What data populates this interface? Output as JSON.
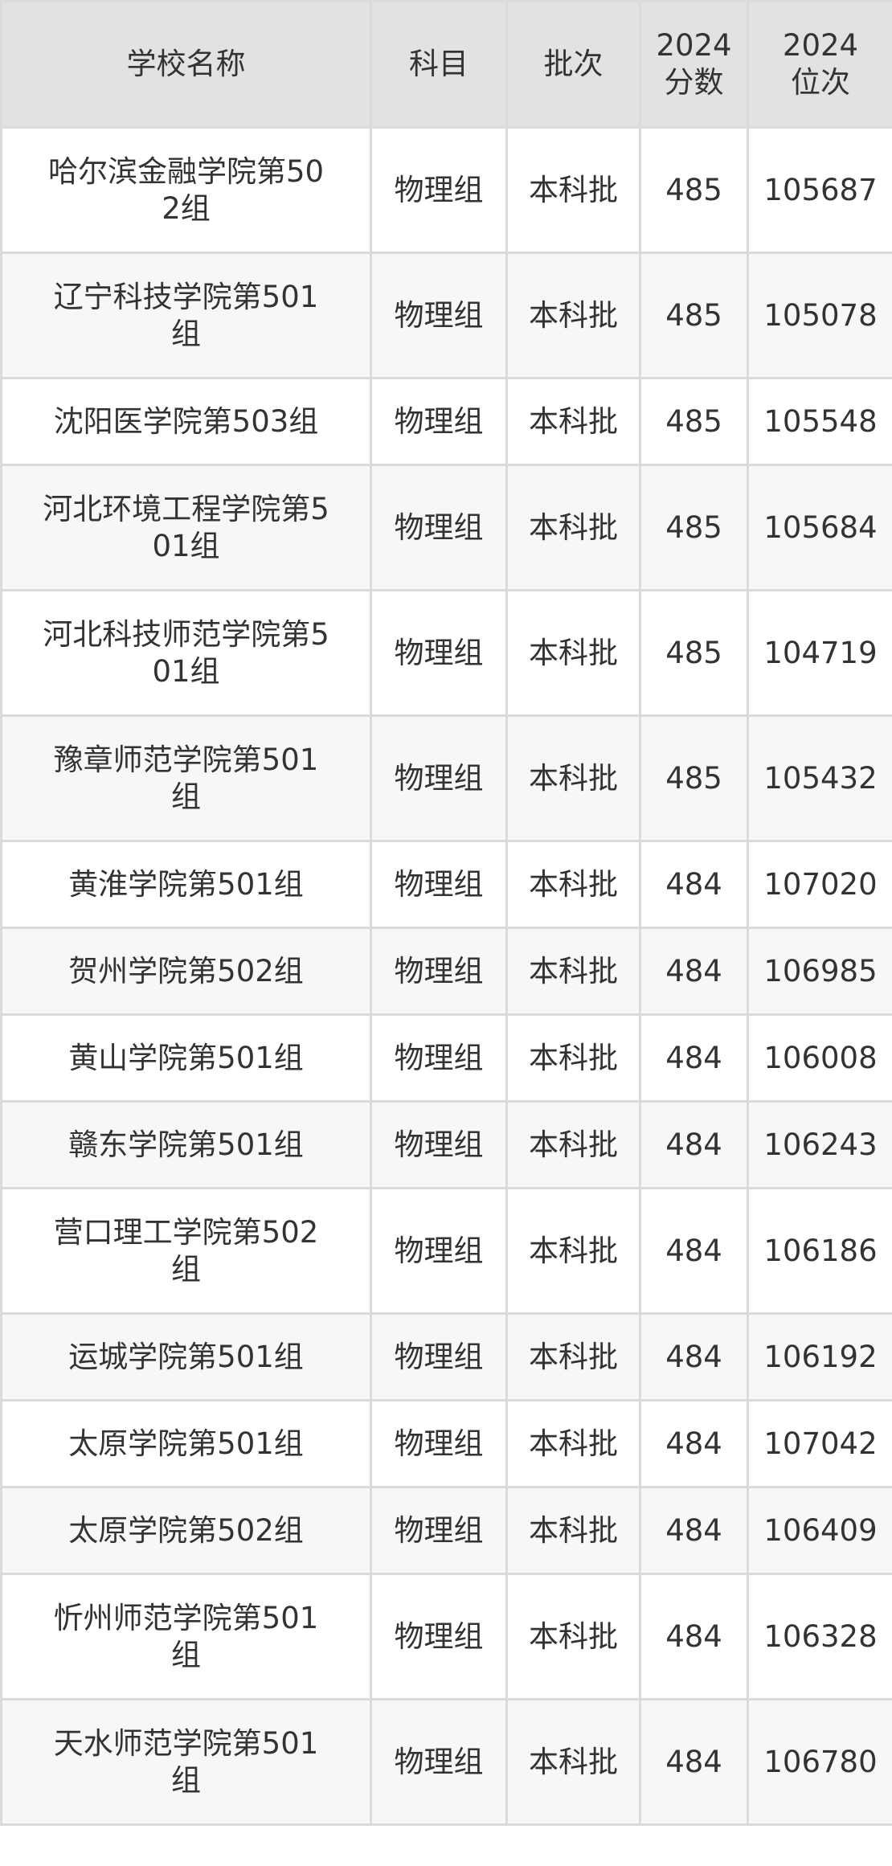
{
  "header": {
    "name": "学校名称",
    "subject": "科目",
    "batch": "批次",
    "score": [
      "2024",
      "分数"
    ],
    "rank": [
      "2024",
      "位次"
    ]
  },
  "rows": [
    {
      "name_lines": [
        "哈尔滨金融学院第50",
        "2组"
      ],
      "subject": "物理组",
      "batch": "本科批",
      "score": "485",
      "rank": "105687"
    },
    {
      "name_lines": [
        "辽宁科技学院第501",
        "组"
      ],
      "subject": "物理组",
      "batch": "本科批",
      "score": "485",
      "rank": "105078"
    },
    {
      "name_lines": [
        "沈阳医学院第503组"
      ],
      "subject": "物理组",
      "batch": "本科批",
      "score": "485",
      "rank": "105548"
    },
    {
      "name_lines": [
        "河北环境工程学院第5",
        "01组"
      ],
      "subject": "物理组",
      "batch": "本科批",
      "score": "485",
      "rank": "105684"
    },
    {
      "name_lines": [
        "河北科技师范学院第5",
        "01组"
      ],
      "subject": "物理组",
      "batch": "本科批",
      "score": "485",
      "rank": "104719"
    },
    {
      "name_lines": [
        "豫章师范学院第501",
        "组"
      ],
      "subject": "物理组",
      "batch": "本科批",
      "score": "485",
      "rank": "105432"
    },
    {
      "name_lines": [
        "黄淮学院第501组"
      ],
      "subject": "物理组",
      "batch": "本科批",
      "score": "484",
      "rank": "107020"
    },
    {
      "name_lines": [
        "贺州学院第502组"
      ],
      "subject": "物理组",
      "batch": "本科批",
      "score": "484",
      "rank": "106985"
    },
    {
      "name_lines": [
        "黄山学院第501组"
      ],
      "subject": "物理组",
      "batch": "本科批",
      "score": "484",
      "rank": "106008"
    },
    {
      "name_lines": [
        "赣东学院第501组"
      ],
      "subject": "物理组",
      "batch": "本科批",
      "score": "484",
      "rank": "106243"
    },
    {
      "name_lines": [
        "营口理工学院第502",
        "组"
      ],
      "subject": "物理组",
      "batch": "本科批",
      "score": "484",
      "rank": "106186"
    },
    {
      "name_lines": [
        "运城学院第501组"
      ],
      "subject": "物理组",
      "batch": "本科批",
      "score": "484",
      "rank": "106192"
    },
    {
      "name_lines": [
        "太原学院第501组"
      ],
      "subject": "物理组",
      "batch": "本科批",
      "score": "484",
      "rank": "107042"
    },
    {
      "name_lines": [
        "太原学院第502组"
      ],
      "subject": "物理组",
      "batch": "本科批",
      "score": "484",
      "rank": "106409"
    },
    {
      "name_lines": [
        "忻州师范学院第501",
        "组"
      ],
      "subject": "物理组",
      "batch": "本科批",
      "score": "484",
      "rank": "106328"
    },
    {
      "name_lines": [
        "天水师范学院第501",
        "组"
      ],
      "subject": "物理组",
      "batch": "本科批",
      "score": "484",
      "rank": "106780"
    }
  ]
}
